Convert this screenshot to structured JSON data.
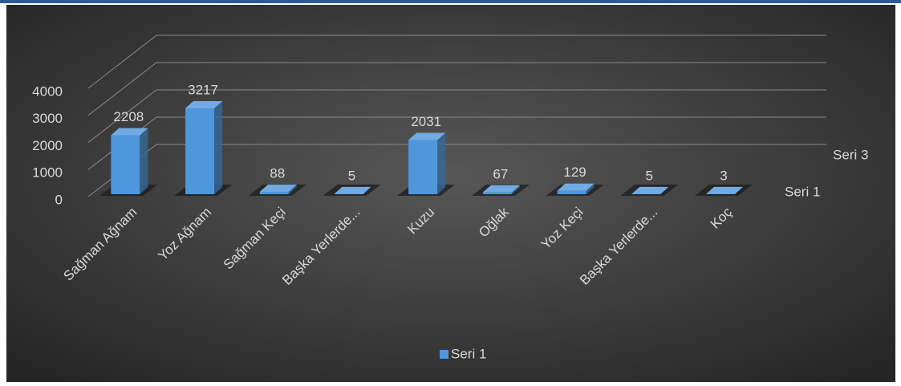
{
  "chart_data": {
    "type": "bar3d",
    "categories": [
      "Sağman Ağnam",
      "Yoz Ağnam",
      "Sağman Keçi",
      "Başka Yerlerde...",
      "Kuzu",
      "Oğlak",
      "Yoz Keçi",
      "Başka Yerlerde...",
      "Koç"
    ],
    "series": [
      {
        "name": "Seri 1",
        "color": "#4f97dc",
        "values": [
          2208,
          3217,
          88,
          5,
          2031,
          67,
          129,
          5,
          3
        ]
      }
    ],
    "depth_labels": [
      "Seri 3",
      "Seri 1"
    ],
    "ylim": [
      0,
      4000
    ],
    "yticks": [
      0,
      1000,
      2000,
      3000,
      4000
    ],
    "grid": true,
    "legend": "bottom"
  }
}
